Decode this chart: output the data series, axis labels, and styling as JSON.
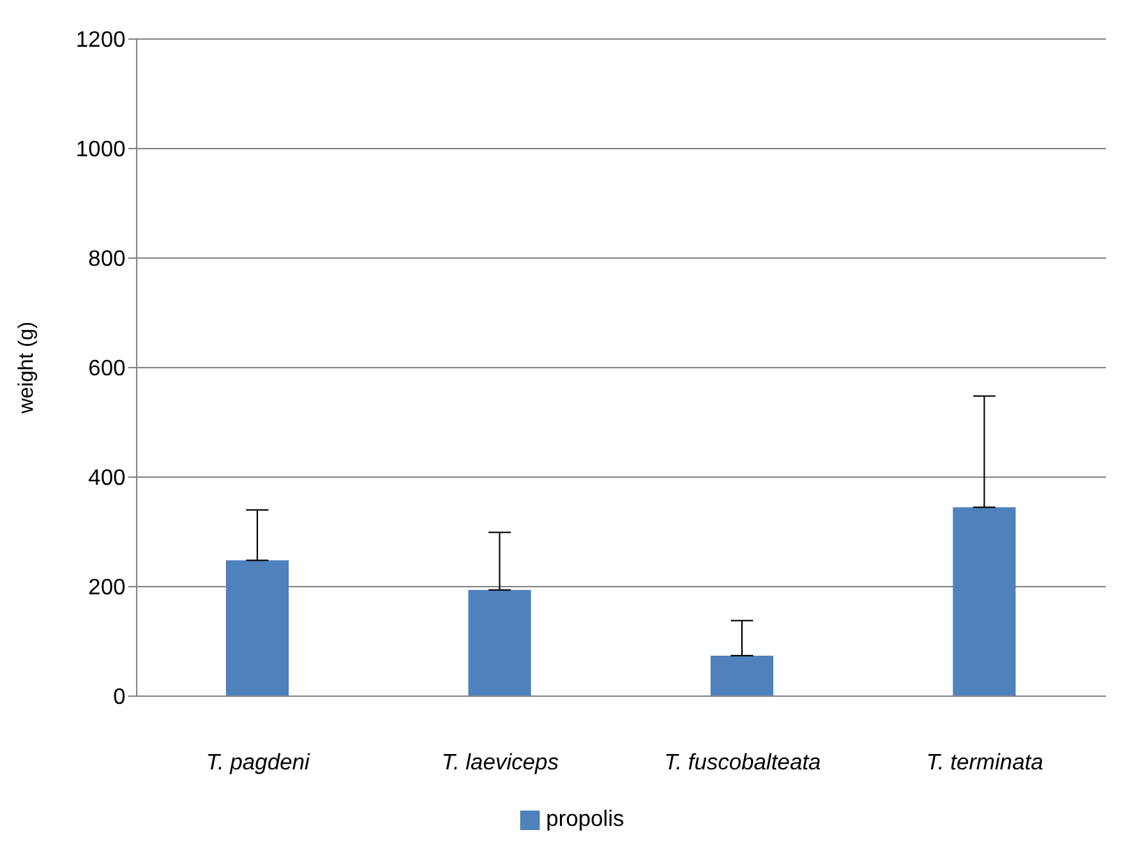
{
  "chart_data": {
    "type": "bar",
    "ylabel": "weight (g)",
    "categories": [
      "T. pagdeni",
      "T. laeviceps",
      "T. fuscobalteata",
      "T. terminata"
    ],
    "series": [
      {
        "name": "propolis",
        "color": "#4f81bd",
        "values": [
          248,
          194,
          74,
          345
        ],
        "errors": [
          [
            248,
            340
          ],
          [
            194,
            299
          ],
          [
            74,
            138
          ],
          [
            345,
            548
          ]
        ]
      }
    ],
    "ylim": [
      0,
      1200
    ],
    "yticks": [
      0,
      200,
      400,
      600,
      800,
      1000,
      1200
    ],
    "grid": "y",
    "legend": "bottom"
  }
}
